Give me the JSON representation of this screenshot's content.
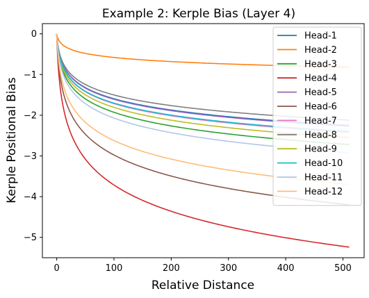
{
  "chart_data": {
    "type": "line",
    "title": "Example 2: Kerple Bias (Layer 4)",
    "xlabel": "Relative Distance",
    "ylabel": "Kerple Positional Bias",
    "xlim": [
      -25,
      537
    ],
    "ylim": [
      -5.5,
      0.25
    ],
    "xticks": [
      0,
      100,
      200,
      300,
      400,
      500
    ],
    "yticks": [
      0,
      -1,
      -2,
      -3,
      -4,
      -5
    ],
    "xtick_labels": [
      "0",
      "100",
      "200",
      "300",
      "400",
      "500"
    ],
    "ytick_labels": [
      "0",
      "−1",
      "−2",
      "−3",
      "−4",
      "−5"
    ],
    "grid": false,
    "legend_position": "top-right",
    "x_max": 511,
    "series": [
      {
        "name": "Head-1",
        "color": "#1f77b4",
        "end": -2.25
      },
      {
        "name": "Head-2",
        "color": "#ff7f0e",
        "end": -0.82
      },
      {
        "name": "Head-3",
        "color": "#2ca02c",
        "end": -2.72
      },
      {
        "name": "Head-4",
        "color": "#d62728",
        "end": -5.24
      },
      {
        "name": "Head-5",
        "color": "#9467bd",
        "end": -2.27
      },
      {
        "name": "Head-6",
        "color": "#8c564b",
        "end": -4.2
      },
      {
        "name": "Head-7",
        "color": "#e377c2",
        "end": -2.42
      },
      {
        "name": "Head-8",
        "color": "#7f7f7f",
        "end": -2.12
      },
      {
        "name": "Head-9",
        "color": "#bcbd22",
        "end": -2.55
      },
      {
        "name": "Head-10",
        "color": "#17becf",
        "end": -2.4
      },
      {
        "name": "Head-11",
        "color": "#aec7e8",
        "end": -2.92
      },
      {
        "name": "Head-12",
        "color": "#ffbb78",
        "end": -3.7
      }
    ]
  }
}
